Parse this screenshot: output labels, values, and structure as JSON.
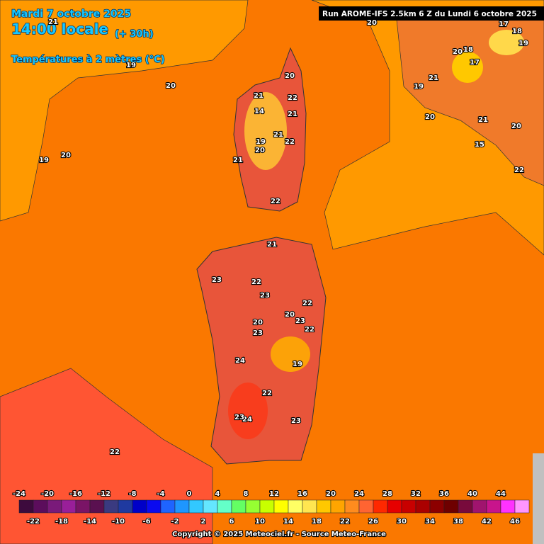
{
  "header": {
    "date": "Mardi 7 octobre 2025",
    "time": "14:00 locale",
    "lead": "(+ 30h)",
    "field": "Températures à 2 mètres (°C)",
    "run": "Run AROME-IFS 2.5km 6 Z du Lundi 6 octobre 2025"
  },
  "map_labels": [
    "21",
    "19",
    "20",
    "20",
    "19",
    "20",
    "17",
    "18",
    "19",
    "20",
    "18",
    "17",
    "21",
    "19",
    "20",
    "21",
    "20",
    "15",
    "22",
    "20",
    "21",
    "22",
    "21",
    "14",
    "21",
    "19",
    "20",
    "22",
    "21",
    "22",
    "21",
    "23",
    "22",
    "23",
    "22",
    "20",
    "20",
    "23",
    "22",
    "23",
    "24",
    "19",
    "22",
    "24",
    "23",
    "23",
    "22"
  ],
  "legend": {
    "values": [
      -24,
      -22,
      -20,
      -18,
      -16,
      -14,
      -12,
      -10,
      -8,
      -6,
      -4,
      -2,
      0,
      2,
      4,
      6,
      8,
      10,
      12,
      14,
      16,
      18,
      20,
      22,
      24,
      26,
      28,
      30,
      32,
      34,
      36,
      38,
      40,
      42,
      44,
      46
    ],
    "colors": [
      "#3d0a3d",
      "#5c0d5c",
      "#7a1a7a",
      "#991f99",
      "#7a1466",
      "#5a1050",
      "#3a3a80",
      "#1f3aa0",
      "#0000c8",
      "#0a0af0",
      "#1e64ff",
      "#1e96ff",
      "#32c8ff",
      "#64e6ff",
      "#64ffc8",
      "#64ff64",
      "#96ff32",
      "#c8ff00",
      "#ffff00",
      "#ffff64",
      "#ffe650",
      "#ffc800",
      "#ffa500",
      "#ff8c1e",
      "#ff6432",
      "#ff2800",
      "#e60000",
      "#c80000",
      "#aa0000",
      "#8c0000",
      "#6e0000",
      "#780a3c",
      "#a0146e",
      "#c8148c",
      "#ff32ff",
      "#ff96ff"
    ]
  },
  "footer": {
    "copyright": "Copyright © 2025 Meteociel.fr - Source Meteo-France"
  }
}
